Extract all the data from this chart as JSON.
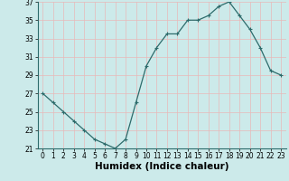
{
  "x": [
    0,
    1,
    2,
    3,
    4,
    5,
    6,
    7,
    8,
    9,
    10,
    11,
    12,
    13,
    14,
    15,
    16,
    17,
    18,
    19,
    20,
    21,
    22,
    23
  ],
  "y": [
    27,
    26,
    25,
    24,
    23,
    22,
    21.5,
    21,
    22,
    26,
    30,
    32,
    33.5,
    33.5,
    35,
    35,
    35.5,
    36.5,
    37,
    35.5,
    34,
    32,
    29.5,
    29
  ],
  "line_color": "#2d6b6b",
  "marker": "+",
  "marker_size": 3,
  "marker_lw": 0.8,
  "line_width": 0.9,
  "bg_color": "#cceaea",
  "grid_color": "#e8b8b8",
  "xlabel": "Humidex (Indice chaleur)",
  "ylim": [
    21,
    37
  ],
  "xlim": [
    -0.5,
    23.5
  ],
  "yticks": [
    21,
    23,
    25,
    27,
    29,
    31,
    33,
    35,
    37
  ],
  "xticks": [
    0,
    1,
    2,
    3,
    4,
    5,
    6,
    7,
    8,
    9,
    10,
    11,
    12,
    13,
    14,
    15,
    16,
    17,
    18,
    19,
    20,
    21,
    22,
    23
  ],
  "tick_label_fontsize": 5.5,
  "xlabel_fontsize": 7.5
}
